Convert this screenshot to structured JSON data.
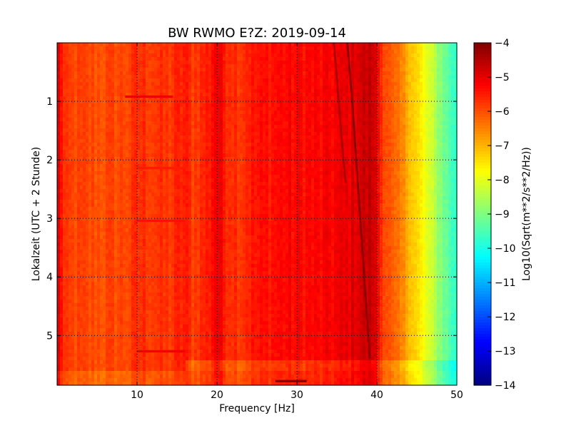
{
  "chart_data": {
    "type": "heatmap",
    "title": "BW RWMO E?Z: 2019-09-14",
    "xlabel": "Frequency [Hz]",
    "ylabel": "Lokalzeit (UTC + 2 Stunde)",
    "xlim": [
      0,
      50
    ],
    "ylim": [
      0,
      5.85
    ],
    "y_inverted": true,
    "x_ticks": [
      10,
      20,
      30,
      40,
      50
    ],
    "x_tick_labels": [
      "10",
      "20",
      "30",
      "40",
      "50"
    ],
    "y_ticks": [
      1,
      2,
      3,
      4,
      5
    ],
    "y_tick_labels": [
      "1",
      "2",
      "3",
      "4",
      "5"
    ],
    "grid": true,
    "colormap": "jet",
    "colorbar": {
      "label": "Log10(Sqrt(m**2/s**2/Hz))",
      "range": [
        -14,
        -4
      ],
      "ticks": [
        -4,
        -5,
        -6,
        -7,
        -8,
        -9,
        -10,
        -11,
        -12,
        -13,
        -14
      ],
      "tick_labels": [
        "−4",
        "−5",
        "−6",
        "−7",
        "−8",
        "−9",
        "−10",
        "−11",
        "−12",
        "−13",
        "−14"
      ]
    },
    "frequency_profile": {
      "frequency_hz": [
        0,
        0.5,
        1,
        5,
        9,
        10,
        14,
        16,
        17,
        19,
        20,
        21,
        23,
        24,
        28,
        33,
        36,
        38,
        39.5,
        40.5,
        42,
        44,
        45,
        46,
        47,
        48,
        49,
        50
      ],
      "log10_amplitude": [
        -4.9,
        -5.3,
        -5.9,
        -6.0,
        -5.9,
        -5.7,
        -5.8,
        -5.5,
        -5.8,
        -5.5,
        -5.0,
        -5.5,
        -5.7,
        -5.5,
        -5.3,
        -5.3,
        -5.1,
        -4.8,
        -4.7,
        -5.6,
        -6.3,
        -6.9,
        -7.4,
        -7.9,
        -8.4,
        -8.9,
        -9.4,
        -9.8
      ]
    },
    "features": [
      {
        "kind": "drifting_line",
        "time_h": [
          0,
          0.5,
          1,
          2,
          3,
          4,
          5,
          5.4
        ],
        "frequency_hz": [
          36.3,
          36.6,
          36.9,
          37.4,
          37.9,
          38.4,
          38.9,
          39.1
        ],
        "log10_amplitude": -4.2
      },
      {
        "kind": "drifting_line",
        "time_h": [
          0,
          0.3,
          1,
          2,
          2.4
        ],
        "frequency_hz": [
          34.6,
          34.8,
          35.2,
          35.8,
          36.1
        ],
        "log10_amplitude": -4.5
      },
      {
        "kind": "time_band",
        "time_h": [
          5.42,
          5.6
        ],
        "frequency_hz": [
          16,
          50
        ],
        "log10_amplitude_shift": -0.45
      },
      {
        "kind": "time_band",
        "time_h": [
          5.6,
          5.85
        ],
        "frequency_hz": [
          0,
          50
        ],
        "log10_amplitude_shift": -0.3
      },
      {
        "kind": "time_band",
        "time_h": [
          5.4,
          5.44
        ],
        "frequency_hz": [
          0,
          50
        ],
        "log10_amplitude_shift": 0.3
      },
      {
        "kind": "segment",
        "time_h": [
          5.76,
          5.8
        ],
        "frequency_hz": [
          27.3,
          31.2
        ],
        "log10_amplitude": -4.1
      },
      {
        "kind": "segment",
        "time_h": [
          0.9,
          0.94
        ],
        "frequency_hz": [
          8.5,
          14.5
        ],
        "log10_amplitude": -5.1
      },
      {
        "kind": "segment",
        "time_h": [
          5.25,
          5.29
        ],
        "frequency_hz": [
          10,
          16
        ],
        "log10_amplitude": -5.1
      },
      {
        "kind": "segment",
        "time_h": [
          2.12,
          2.16
        ],
        "frequency_hz": [
          10,
          16
        ],
        "log10_amplitude": -5.5
      },
      {
        "kind": "segment",
        "time_h": [
          3.02,
          3.06
        ],
        "frequency_hz": [
          10,
          16
        ],
        "log10_amplitude": -5.4
      }
    ]
  }
}
